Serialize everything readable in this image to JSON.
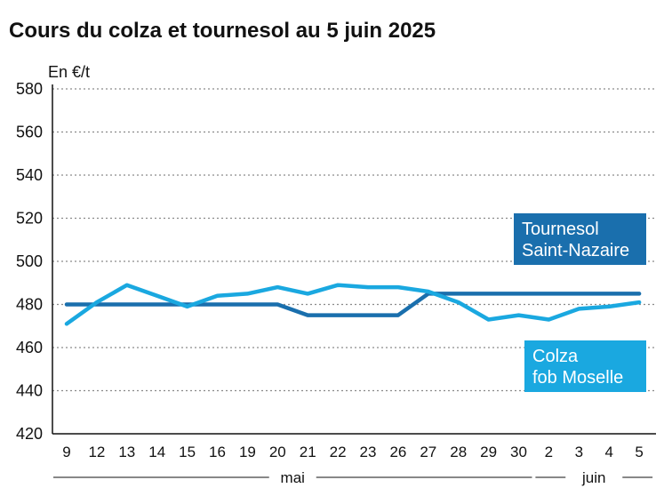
{
  "chart_data": {
    "type": "line",
    "title": "Cours du colza et tournesol au 5 juin 2025",
    "ylabel": "En €/t",
    "ylim": [
      420,
      580
    ],
    "yticks": [
      420,
      440,
      460,
      480,
      500,
      520,
      540,
      560,
      580
    ],
    "grid": "horizontal dotted",
    "categories": [
      "9",
      "12",
      "13",
      "14",
      "15",
      "16",
      "19",
      "20",
      "21",
      "22",
      "23",
      "26",
      "27",
      "28",
      "29",
      "30",
      "2",
      "3",
      "4",
      "5"
    ],
    "months": [
      {
        "label": "mai",
        "from": "9",
        "to": "30"
      },
      {
        "label": "juin",
        "from": "2",
        "to": "5"
      }
    ],
    "series": [
      {
        "name_lines": [
          "Tournesol",
          "Saint-Nazaire"
        ],
        "color": "#1a6fad",
        "values": [
          480,
          480,
          480,
          480,
          480,
          480,
          480,
          480,
          475,
          475,
          475,
          475,
          485,
          485,
          485,
          485,
          485,
          485,
          485,
          485
        ]
      },
      {
        "name_lines": [
          "Colza",
          "fob Moselle"
        ],
        "color": "#1aa8e0",
        "values": [
          471,
          481,
          489,
          484,
          479,
          484,
          485,
          488,
          485,
          489,
          488,
          488,
          486,
          481,
          473,
          475,
          473,
          478,
          479,
          481
        ]
      }
    ]
  }
}
